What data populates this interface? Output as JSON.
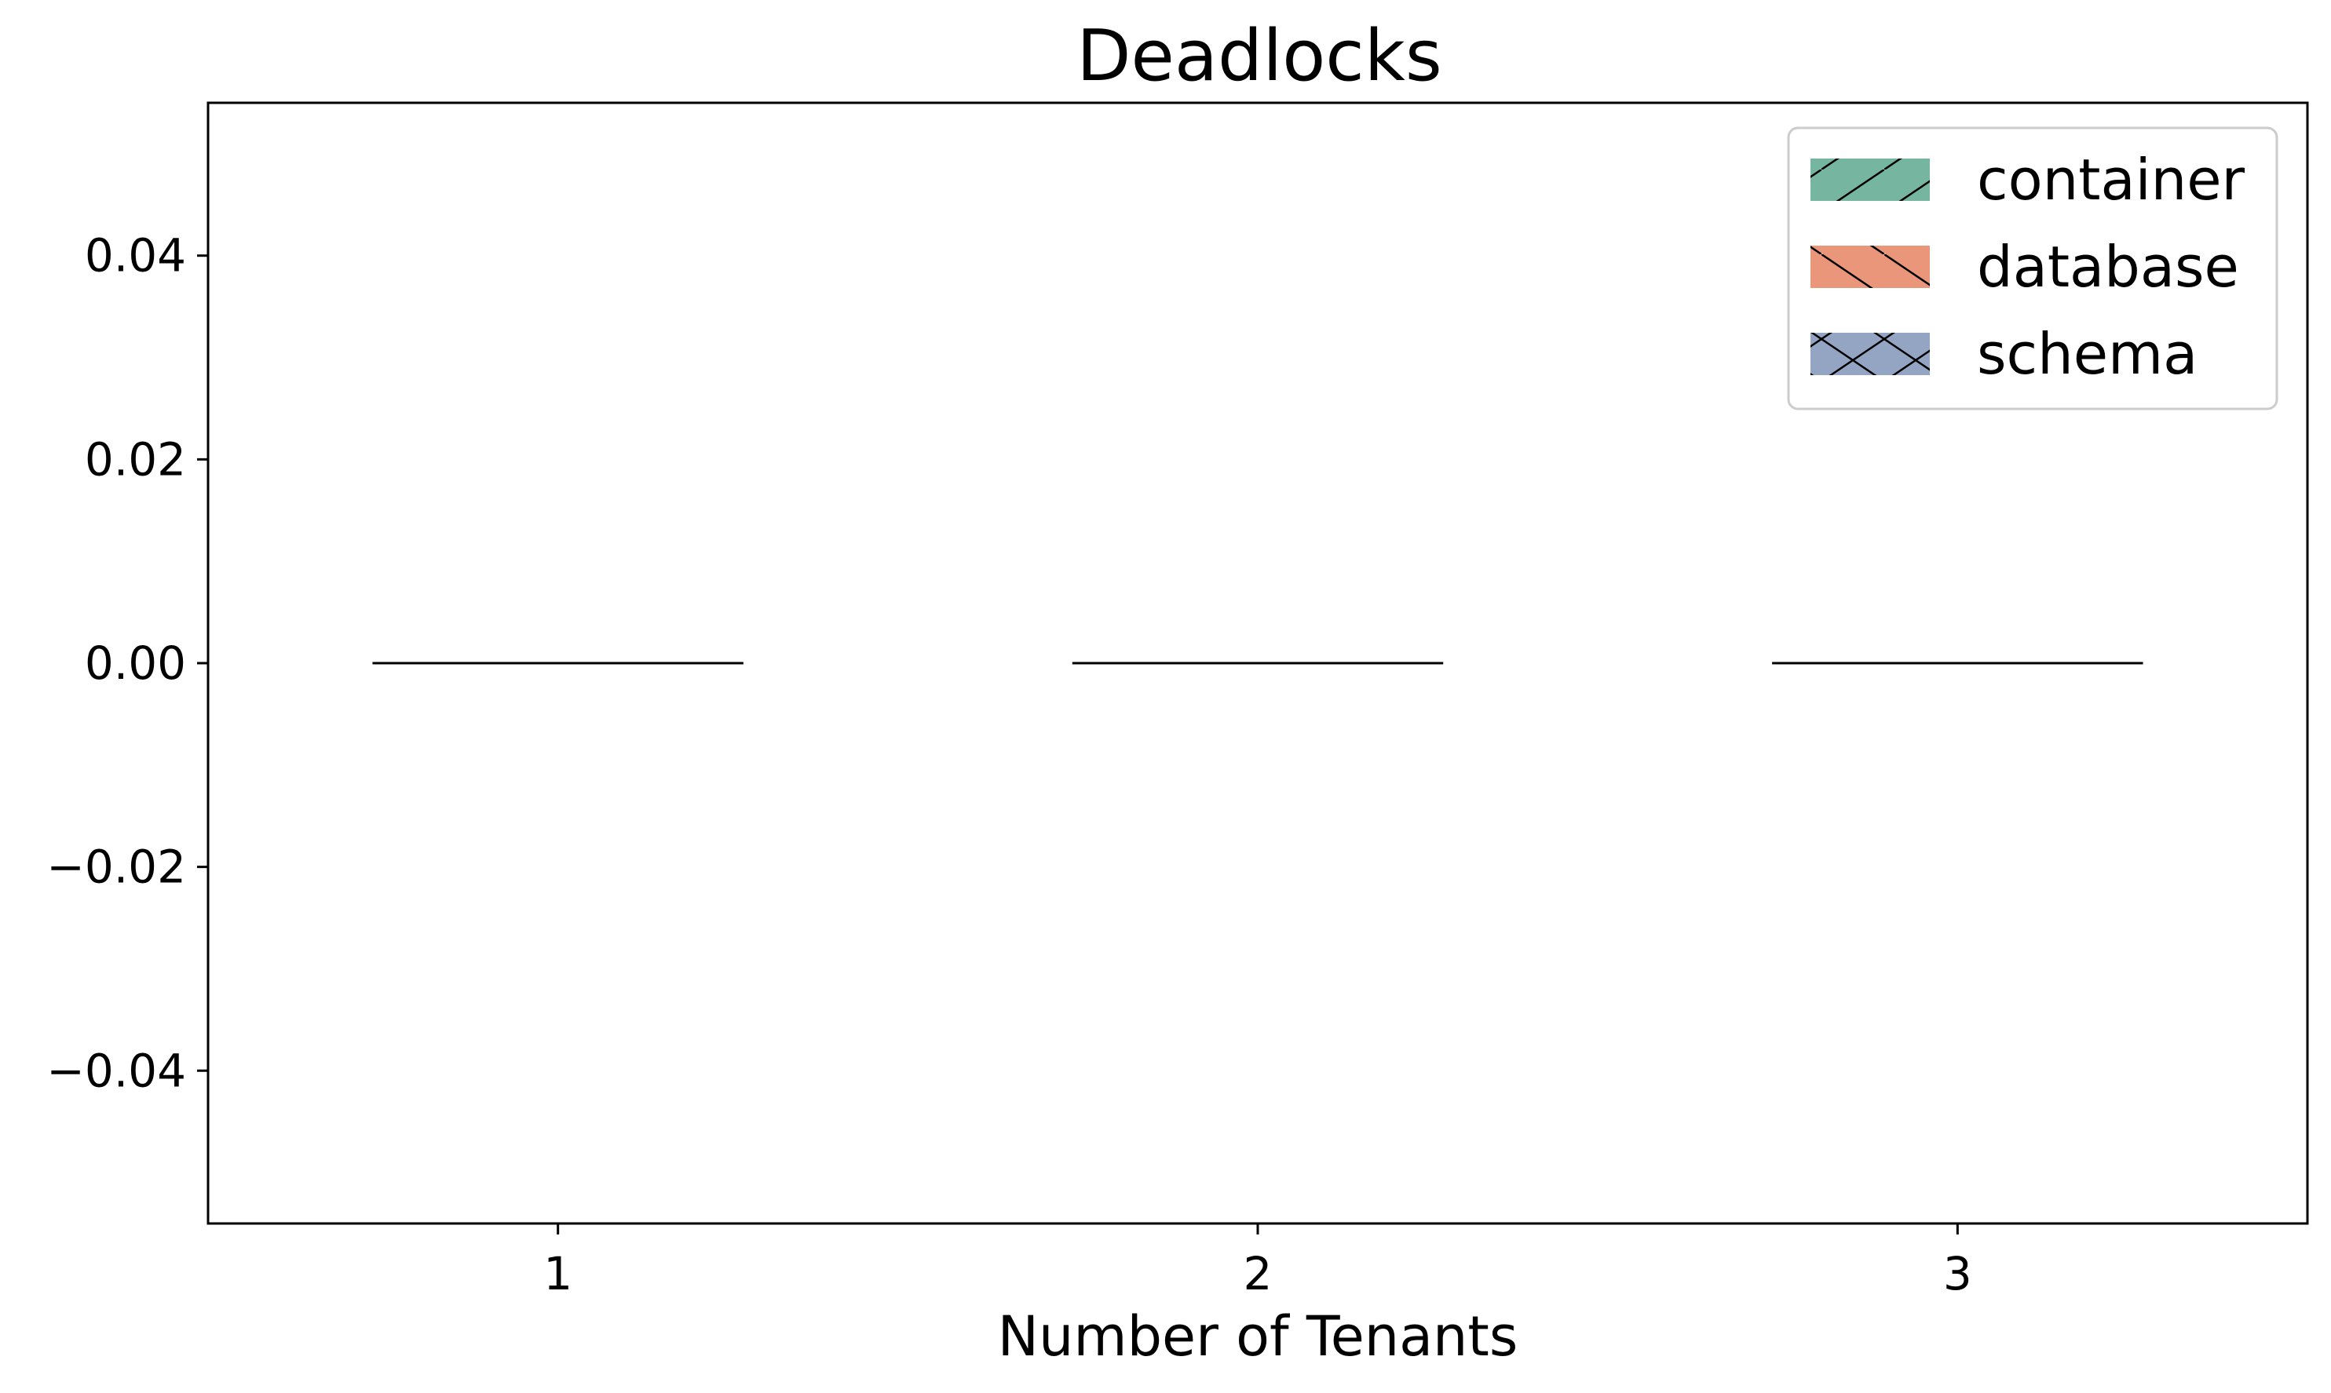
{
  "chart_data": {
    "type": "bar",
    "title": "Deadlocks",
    "xlabel": "Number of Tenants",
    "ylabel": "",
    "categories": [
      "1",
      "2",
      "3"
    ],
    "series": [
      {
        "name": "container",
        "values": [
          0,
          0,
          0
        ],
        "color": "#76b59f",
        "hatch": "/"
      },
      {
        "name": "database",
        "values": [
          0,
          0,
          0
        ],
        "color": "#e9967a",
        "hatch": "\\"
      },
      {
        "name": "schema",
        "values": [
          0,
          0,
          0
        ],
        "color": "#94a5c4",
        "hatch": "x"
      }
    ],
    "ylim": [
      -0.055,
      0.055
    ],
    "yticks": [
      -0.04,
      -0.02,
      0.0,
      0.02,
      0.04
    ],
    "ytick_labels": [
      "−0.04",
      "−0.02",
      "0.00",
      "0.02",
      "0.04"
    ],
    "grid": false,
    "legend_position": "top-right"
  }
}
